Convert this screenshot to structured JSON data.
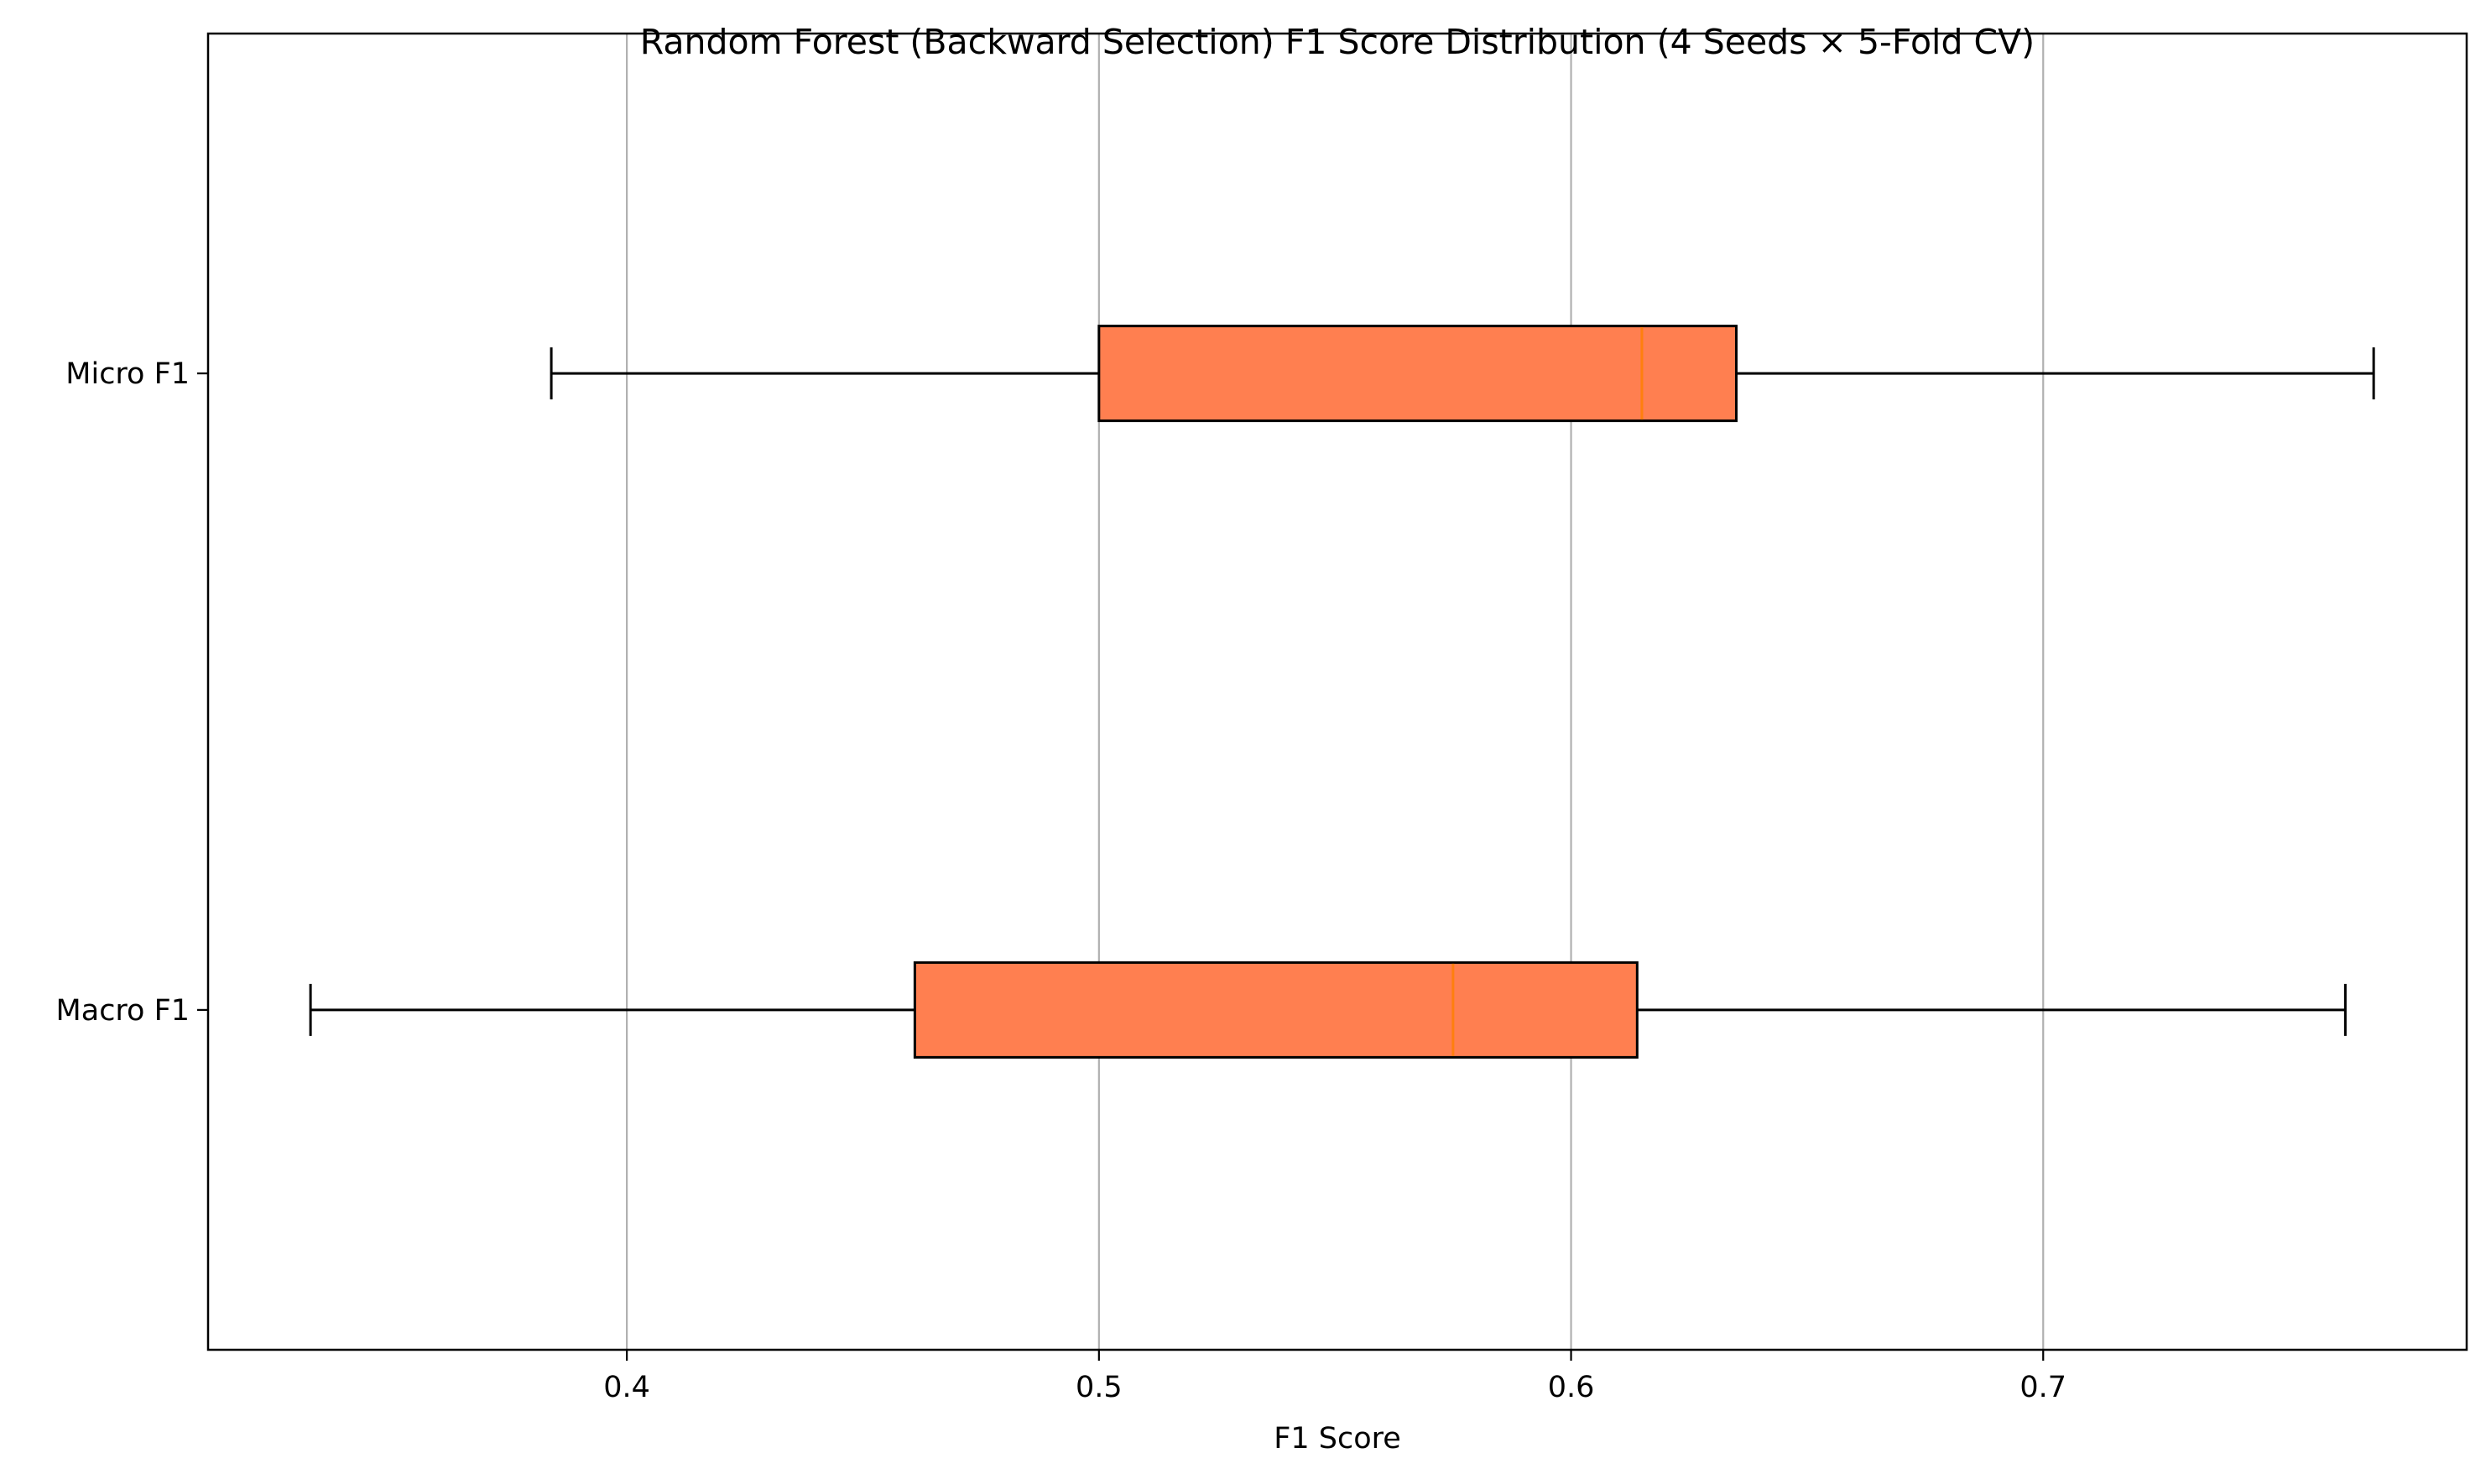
{
  "chart_data": {
    "type": "boxplot",
    "orientation": "horizontal",
    "title": "Random Forest (Backward Selection) F1 Score Distribution (4 Seeds × 5-Fold CV)",
    "xlabel": "F1 Score",
    "ylabel": "",
    "xlim": [
      0.3113,
      0.7897
    ],
    "xticks": [
      0.4,
      0.5,
      0.6,
      0.7
    ],
    "xtick_labels": [
      "0.4",
      "0.5",
      "0.6",
      "0.7"
    ],
    "grid": "x-major",
    "legend": "none",
    "categories": [
      "Micro F1",
      "Macro F1"
    ],
    "series": [
      {
        "name": "Micro F1",
        "whisker_low": 0.384,
        "q1": 0.5,
        "median": 0.615,
        "q3": 0.635,
        "whisker_high": 0.77
      },
      {
        "name": "Macro F1",
        "whisker_low": 0.333,
        "q1": 0.461,
        "median": 0.575,
        "q3": 0.614,
        "whisker_high": 0.764
      }
    ],
    "colors": {
      "box_fill": "#FF7F50",
      "median_line": "#FF7F0E",
      "box_edge": "#000000",
      "grid": "#B0B0B0"
    }
  }
}
